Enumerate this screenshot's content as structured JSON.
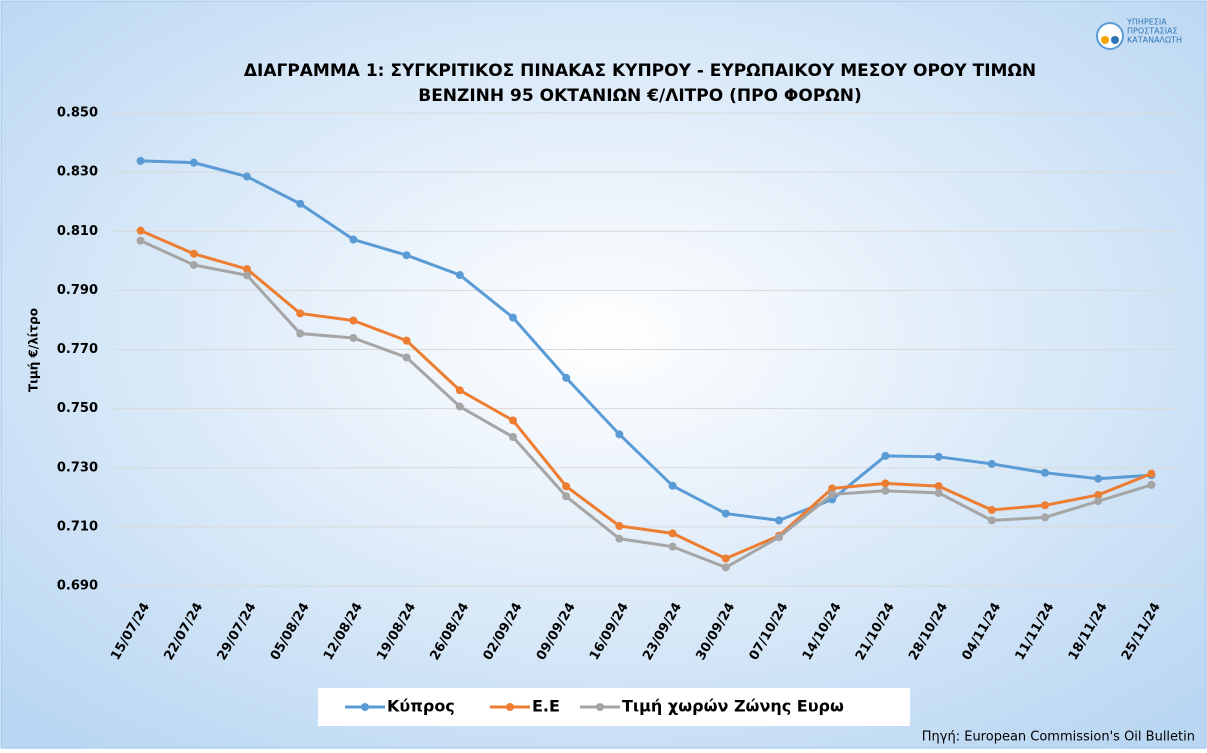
{
  "logo": [
    "ΥΠΗΡΕΣΙΑ",
    "ΠΡΟΣΤΑΣΙΑΣ",
    "ΚΑΤΑΝΑΛΩΤΗ"
  ],
  "chart_data": {
    "type": "line",
    "title": "ΔΙΑΓΡΑΜΜΑ 1: ΣΥΓΚΡΙΤΙΚΟΣ ΠΙΝΑΚΑΣ ΚΥΠΡΟΥ - ΕΥΡΩΠΑΙΚΟΥ ΜΕΣΟΥ ΟΡΟΥ ΤΙΜΩΝ",
    "subtitle": "ΒΕΝΖΙΝΗ 95 ΟΚΤΑΝΙΩΝ €/ΛΙΤΡΟ (ΠΡΟ ΦΟΡΩΝ)",
    "y_label": "Τιμή €/λίτρο",
    "source": "Πηγή: European Commission's Oil Bulletin",
    "categories": [
      "15/07/24",
      "22/07/24",
      "29/07/24",
      "05/08/24",
      "12/08/24",
      "19/08/24",
      "26/08/24",
      "02/09/24",
      "09/09/24",
      "16/09/24",
      "23/09/24",
      "30/09/24",
      "07/10/24",
      "14/10/24",
      "21/10/24",
      "28/10/24",
      "04/11/24",
      "11/11/24",
      "18/11/24",
      "25/11/24"
    ],
    "series": [
      {
        "name": "Κύπρος",
        "color": "#5b9bd5",
        "values": [
          0.8338,
          0.8332,
          0.8285,
          0.8193,
          0.8072,
          0.8019,
          0.7952,
          0.7808,
          0.7604,
          0.7413,
          0.7239,
          0.7145,
          0.7122,
          0.7193,
          0.734,
          0.7337,
          0.7313,
          0.7283,
          0.7263,
          0.7275
        ]
      },
      {
        "name": "Ε.Ε",
        "color": "#ed7d31",
        "values": [
          0.8102,
          0.8024,
          0.7972,
          0.7822,
          0.7798,
          0.773,
          0.7562,
          0.746,
          0.7237,
          0.7103,
          0.7078,
          0.6993,
          0.707,
          0.723,
          0.7247,
          0.7238,
          0.7157,
          0.7173,
          0.7208,
          0.728
        ]
      },
      {
        "name": "Τιμή χωρών Ζώνης Ευρω",
        "color": "#a5a5a5",
        "values": [
          0.8068,
          0.7986,
          0.7951,
          0.7754,
          0.7739,
          0.7673,
          0.7507,
          0.7404,
          0.7203,
          0.706,
          0.7033,
          0.6963,
          0.7065,
          0.721,
          0.7222,
          0.7215,
          0.7122,
          0.7132,
          0.7187,
          0.7242
        ]
      }
    ],
    "ylim": [
      0.69,
      0.85
    ],
    "yticks": [
      {
        "value": 0.69,
        "label": "0.690"
      },
      {
        "value": 0.71,
        "label": "0.710"
      },
      {
        "value": 0.73,
        "label": "0.730"
      },
      {
        "value": 0.75,
        "label": "0.750"
      },
      {
        "value": 0.77,
        "label": "0.770"
      },
      {
        "value": 0.79,
        "label": "0.790"
      },
      {
        "value": 0.81,
        "label": "0.810"
      },
      {
        "value": 0.83,
        "label": "0.830"
      },
      {
        "value": 0.85,
        "label": "0.850"
      }
    ],
    "grid": true,
    "legend": "bottom"
  }
}
